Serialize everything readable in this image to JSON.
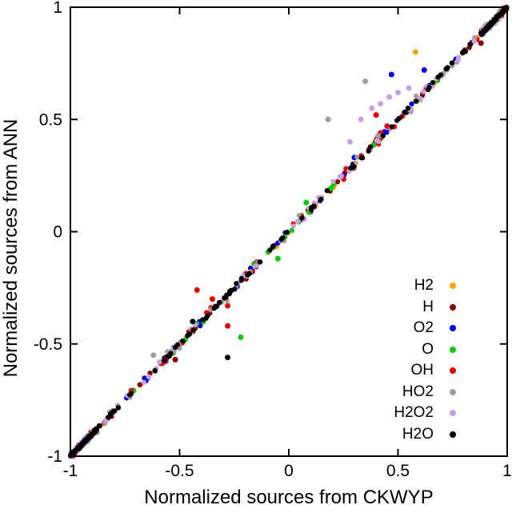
{
  "page": {
    "background": "#ffffff",
    "text_color": "#000000"
  },
  "chart_data": {
    "type": "scatter",
    "title": "",
    "xlabel": "Normalized sources from CKWYP",
    "ylabel": "Normalized sources from ANN",
    "xlim": [
      -1,
      1
    ],
    "ylim": [
      -1,
      1
    ],
    "xticks": [
      -1,
      -0.5,
      0,
      0.5,
      1
    ],
    "xtick_labels": [
      "-1",
      "-0.5",
      "0",
      "0.5",
      "1"
    ],
    "yticks": [
      -1,
      -0.5,
      0,
      0.5,
      1
    ],
    "ytick_labels": [
      "-1",
      "-0.5",
      "0",
      "0.5",
      "1"
    ],
    "grid": false,
    "legend_position": "lower right inside plot",
    "relationship": "all species points lie along the identity line y = x from (-1,-1) to (1,1), with dense clusters at both corners and sparse outliers off the diagonal",
    "marker": "filled dot",
    "series": [
      {
        "name": "H2",
        "color": "#FFA500",
        "band": {
          "n": 60,
          "jitter": 0.015,
          "seed": 101
        },
        "outlier_points": [
          [
            0.58,
            0.8
          ],
          [
            0.97,
            0.985
          ]
        ]
      },
      {
        "name": "H",
        "color": "#8B0000",
        "band": {
          "n": 80,
          "jitter": 0.018,
          "seed": 102
        },
        "outlier_points": [
          [
            -0.52,
            -0.57
          ],
          [
            0.88,
            0.84
          ]
        ]
      },
      {
        "name": "O2",
        "color": "#0000EE",
        "band": {
          "n": 70,
          "jitter": 0.02,
          "seed": 103
        },
        "outlier_points": [
          [
            0.47,
            0.7
          ],
          [
            0.62,
            0.72
          ],
          [
            0.3,
            0.33
          ]
        ]
      },
      {
        "name": "O",
        "color": "#00CC00",
        "band": {
          "n": 80,
          "jitter": 0.022,
          "seed": 104
        },
        "outlier_points": [
          [
            -0.22,
            -0.47
          ],
          [
            -0.05,
            -0.12
          ],
          [
            0.08,
            0.13
          ]
        ]
      },
      {
        "name": "OH",
        "color": "#EE0000",
        "band": {
          "n": 90,
          "jitter": 0.03,
          "seed": 105
        },
        "outlier_points": [
          [
            -0.42,
            -0.26
          ],
          [
            -0.35,
            -0.3
          ],
          [
            -0.28,
            -0.33
          ],
          [
            -0.28,
            -0.42
          ],
          [
            0.4,
            0.52
          ],
          [
            0.45,
            0.47
          ],
          [
            0.42,
            0.44
          ]
        ]
      },
      {
        "name": "HO2",
        "color": "#9E9E9E",
        "band": {
          "n": 110,
          "jitter": 0.035,
          "seed": 106
        },
        "outlier_points": [
          [
            0.18,
            0.5
          ],
          [
            0.35,
            0.67
          ],
          [
            -0.62,
            -0.55
          ]
        ]
      },
      {
        "name": "H2O2",
        "color": "#C9A0E8",
        "band": {
          "n": 130,
          "jitter": 0.028,
          "seed": 107
        },
        "outlier_points": [
          [
            0.33,
            0.5
          ],
          [
            0.38,
            0.55
          ],
          [
            0.42,
            0.57
          ],
          [
            0.46,
            0.6
          ],
          [
            0.5,
            0.62
          ],
          [
            0.55,
            0.64
          ],
          [
            0.28,
            0.4
          ]
        ]
      },
      {
        "name": "H2O",
        "color": "#000000",
        "band": {
          "n": 230,
          "jitter": 0.012,
          "seed": 108
        },
        "outlier_points": [
          [
            -0.28,
            -0.56
          ],
          [
            -0.44,
            -0.4
          ]
        ]
      }
    ]
  }
}
